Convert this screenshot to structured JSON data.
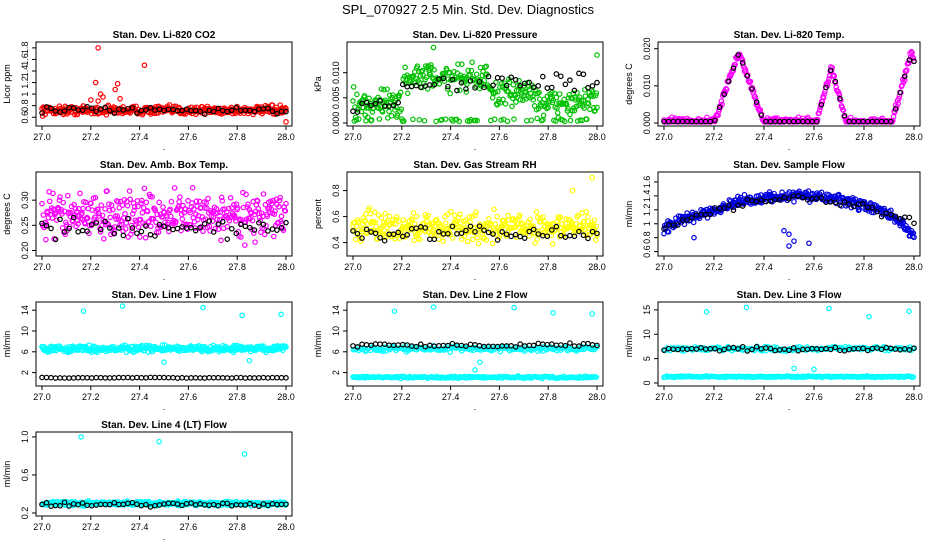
{
  "title": "SPL_070927  2.5 Min. Std. Dev. Diagnostics",
  "chart_data": [
    {
      "type": "scatter",
      "title": "Stan. Dev. Li-820 CO2",
      "ylabel": "Licor ppm",
      "color": "#ff0000",
      "xlim": [
        27.0,
        28.0
      ],
      "ylim": [
        0.5,
        1.85
      ],
      "xticks": [
        "27.0",
        "27.2",
        "27.4",
        "27.6",
        "27.8",
        "28.0"
      ],
      "yticks": [
        "0.6",
        "0.8",
        "1",
        "1.2",
        "1.4",
        "1.6",
        "1.8"
      ],
      "base": 0.72,
      "spread": 0.06,
      "black_base": 0.72,
      "black_spread": 0.05,
      "outliers": [
        [
          27.23,
          1.8
        ],
        [
          27.22,
          1.2
        ],
        [
          27.24,
          1.0
        ],
        [
          27.25,
          0.95
        ],
        [
          27.23,
          0.88
        ],
        [
          27.31,
          1.18
        ],
        [
          27.3,
          1.08
        ],
        [
          27.32,
          0.92
        ],
        [
          27.42,
          1.5
        ],
        [
          27.2,
          0.9
        ],
        [
          28.0,
          0.52
        ]
      ]
    },
    {
      "type": "scatter",
      "title": "Stan. Dev. Li-820 Pressure",
      "ylabel": "kPa",
      "color": "#00c000",
      "xlim": [
        27.0,
        28.0
      ],
      "ylim": [
        0.0,
        0.0155
      ],
      "xticks": [
        "27.0",
        "27.2",
        "27.4",
        "27.6",
        "27.8",
        "28.0"
      ],
      "yticks": [
        "0.000",
        "0.005",
        "0.010"
      ],
      "mode": "pressure",
      "outliers": [
        [
          27.33,
          0.015
        ],
        [
          28.0,
          0.0135
        ]
      ]
    },
    {
      "type": "scatter",
      "title": "Stan. Dev. Li-820 Temp.",
      "ylabel": "degrees C",
      "color": "#ff00ff",
      "xlim": [
        27.0,
        28.0
      ],
      "ylim": [
        0.0,
        0.021
      ],
      "xticks": [
        "27.0",
        "27.2",
        "27.4",
        "27.6",
        "27.8",
        "28.0"
      ],
      "yticks": [
        "0.000",
        "0.010",
        "0.020"
      ],
      "mode": "temp",
      "outliers": []
    },
    {
      "type": "scatter",
      "title": "Stan. Dev. Amb. Box Temp.",
      "ylabel": "degrees C",
      "color": "#ff00ff",
      "xlim": [
        27.0,
        28.0
      ],
      "ylim": [
        0.195,
        0.35
      ],
      "xticks": [
        "27.0",
        "27.2",
        "27.4",
        "27.6",
        "27.8",
        "28.0"
      ],
      "yticks": [
        "0.20",
        "0.25",
        "0.30"
      ],
      "base": 0.27,
      "spread": 0.035,
      "black_base": 0.245,
      "black_spread": 0.015,
      "outliers": []
    },
    {
      "type": "scatter",
      "title": "Stan. Dev. Gas Stream RH",
      "ylabel": "percent",
      "color": "#ffff00",
      "xlim": [
        27.0,
        28.0
      ],
      "ylim": [
        0.32,
        0.92
      ],
      "xticks": [
        "27.0",
        "27.2",
        "27.4",
        "27.6",
        "27.8",
        "28.0"
      ],
      "yticks": [
        "0.4",
        "0.6",
        "0.8"
      ],
      "base": 0.52,
      "spread": 0.09,
      "black_base": 0.47,
      "black_spread": 0.05,
      "outliers": [
        [
          27.98,
          0.9
        ],
        [
          27.9,
          0.8
        ]
      ]
    },
    {
      "type": "scatter",
      "title": "Stan. Dev. Sample Flow",
      "ylabel": "ml/min",
      "color": "#0000e0",
      "xlim": [
        27.0,
        28.0
      ],
      "ylim": [
        0.58,
        1.7
      ],
      "xticks": [
        "27.0",
        "27.2",
        "27.4",
        "27.6",
        "27.8",
        "28.0"
      ],
      "yticks": [
        "0.6",
        "0.8",
        "1",
        "1.2",
        "1.4",
        "1.6"
      ],
      "mode": "flow",
      "outliers": [
        [
          27.12,
          0.8
        ],
        [
          27.5,
          0.85
        ],
        [
          27.52,
          0.75
        ],
        [
          27.48,
          0.9
        ],
        [
          27.58,
          0.72
        ],
        [
          27.5,
          0.68
        ]
      ]
    },
    {
      "type": "scatter",
      "title": "Stan. Dev. Line 1 Flow",
      "ylabel": "ml/min",
      "color": "#00ffff",
      "xlim": [
        27.0,
        28.0
      ],
      "ylim": [
        0,
        15
      ],
      "xticks": [
        "27.0",
        "27.2",
        "27.4",
        "27.6",
        "27.8",
        "28.0"
      ],
      "yticks": [
        "2",
        "6",
        "10",
        "14"
      ],
      "base": 6.6,
      "spread": 0.5,
      "black_base": 1.0,
      "black_spread": 0.05,
      "outliers": [
        [
          27.17,
          13.8
        ],
        [
          27.33,
          14.8
        ],
        [
          27.66,
          14.5
        ],
        [
          27.82,
          13.0
        ],
        [
          27.98,
          13.2
        ],
        [
          27.5,
          4.0
        ],
        [
          27.85,
          4.3
        ]
      ]
    },
    {
      "type": "scatter",
      "title": "Stan. Dev. Line 2 Flow",
      "ylabel": "ml/min",
      "color": "#00ffff",
      "xlim": [
        27.0,
        28.0
      ],
      "ylim": [
        0,
        15
      ],
      "xticks": [
        "27.0",
        "27.2",
        "27.4",
        "27.6",
        "27.8",
        "28.0"
      ],
      "yticks": [
        "2",
        "6",
        "10",
        "14"
      ],
      "mode": "line2",
      "outliers": [
        [
          27.17,
          13.8
        ],
        [
          27.33,
          14.6
        ],
        [
          27.66,
          14.5
        ],
        [
          27.82,
          13.5
        ],
        [
          27.98,
          13.3
        ],
        [
          27.5,
          2.5
        ],
        [
          27.52,
          4.0
        ]
      ]
    },
    {
      "type": "scatter",
      "title": "Stan. Dev. Line 3 Flow",
      "ylabel": "ml/min",
      "color": "#00ffff",
      "xlim": [
        27.0,
        28.0
      ],
      "ylim": [
        0,
        16
      ],
      "xticks": [
        "27.0",
        "27.2",
        "27.4",
        "27.6",
        "27.8",
        "28.0"
      ],
      "yticks": [
        "0",
        "5",
        "10",
        "15"
      ],
      "mode": "line3",
      "outliers": [
        [
          27.17,
          14.6
        ],
        [
          27.33,
          15.5
        ],
        [
          27.66,
          15.3
        ],
        [
          27.82,
          13.6
        ],
        [
          27.98,
          14.7
        ],
        [
          27.52,
          3.0
        ],
        [
          27.6,
          2.8
        ]
      ]
    },
    {
      "type": "scatter",
      "title": "Stan. Dev. Line 4 (LT) Flow",
      "ylabel": "ml/min",
      "color": "#00ffff",
      "xlim": [
        27.0,
        28.0
      ],
      "ylim": [
        0.2,
        1.02
      ],
      "xticks": [
        "27.0",
        "27.2",
        "27.4",
        "27.6",
        "27.8",
        "28.0"
      ],
      "yticks": [
        "0.2",
        "0.6",
        "1.0"
      ],
      "base": 0.3,
      "spread": 0.018,
      "black_base": 0.29,
      "black_spread": 0.02,
      "outliers": [
        [
          27.16,
          1.0
        ],
        [
          27.48,
          0.95
        ],
        [
          27.83,
          0.82
        ]
      ]
    }
  ]
}
